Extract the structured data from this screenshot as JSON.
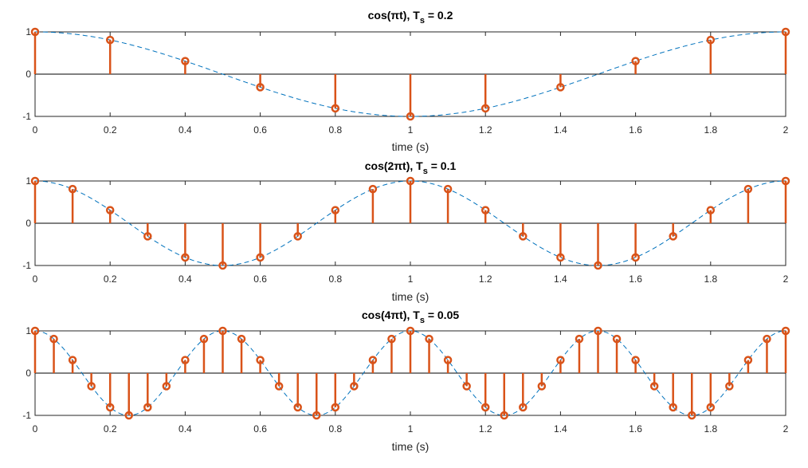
{
  "chart_data": [
    {
      "type": "stem",
      "title": {
        "main": "cos(πt), T",
        "sub": "s",
        "tail": " = 0.2"
      },
      "xlabel": "time (s)",
      "ylabel": "",
      "xlim": [
        0,
        2
      ],
      "ylim": [
        -1,
        1
      ],
      "xticks": [
        "0",
        "0.2",
        "0.4",
        "0.6",
        "0.8",
        "1",
        "1.2",
        "1.4",
        "1.6",
        "1.8",
        "2"
      ],
      "yticks": [
        "-1",
        "0",
        "1"
      ],
      "continuous_frequency": 0.5,
      "continuous_style": "dashed",
      "x": [
        0,
        0.2,
        0.4,
        0.6,
        0.8,
        1.0,
        1.2,
        1.4,
        1.6,
        1.8,
        2.0
      ],
      "values": [
        1,
        0.809,
        0.309,
        -0.309,
        -0.809,
        -1,
        -0.809,
        -0.309,
        0.309,
        0.809,
        1
      ]
    },
    {
      "type": "stem",
      "title": {
        "main": "cos(2πt), T",
        "sub": "s",
        "tail": " = 0.1"
      },
      "xlabel": "time (s)",
      "ylabel": "",
      "xlim": [
        0,
        2
      ],
      "ylim": [
        -1,
        1
      ],
      "xticks": [
        "0",
        "0.2",
        "0.4",
        "0.6",
        "0.8",
        "1",
        "1.2",
        "1.4",
        "1.6",
        "1.8",
        "2"
      ],
      "yticks": [
        "-1",
        "0",
        "1"
      ],
      "continuous_frequency": 1,
      "continuous_style": "dashed",
      "x": [
        0,
        0.1,
        0.2,
        0.3,
        0.4,
        0.5,
        0.6,
        0.7,
        0.8,
        0.9,
        1.0,
        1.1,
        1.2,
        1.3,
        1.4,
        1.5,
        1.6,
        1.7,
        1.8,
        1.9,
        2.0
      ],
      "values": [
        1,
        0.809,
        0.309,
        -0.309,
        -0.809,
        -1,
        -0.809,
        -0.309,
        0.309,
        0.809,
        1,
        0.809,
        0.309,
        -0.309,
        -0.809,
        -1,
        -0.809,
        -0.309,
        0.309,
        0.809,
        1
      ]
    },
    {
      "type": "stem",
      "title": {
        "main": "cos(4πt), T",
        "sub": "s",
        "tail": " = 0.05"
      },
      "xlabel": "time (s)",
      "ylabel": "",
      "xlim": [
        0,
        2
      ],
      "ylim": [
        -1,
        1
      ],
      "xticks": [
        "0",
        "0.2",
        "0.4",
        "0.6",
        "0.8",
        "1",
        "1.2",
        "1.4",
        "1.6",
        "1.8",
        "2"
      ],
      "yticks": [
        "-1",
        "0",
        "1"
      ],
      "continuous_frequency": 2,
      "continuous_style": "dashed",
      "x": [
        0,
        0.05,
        0.1,
        0.15,
        0.2,
        0.25,
        0.3,
        0.35,
        0.4,
        0.45,
        0.5,
        0.55,
        0.6,
        0.65,
        0.7,
        0.75,
        0.8,
        0.85,
        0.9,
        0.95,
        1.0,
        1.05,
        1.1,
        1.15,
        1.2,
        1.25,
        1.3,
        1.35,
        1.4,
        1.45,
        1.5,
        1.55,
        1.6,
        1.65,
        1.7,
        1.75,
        1.8,
        1.85,
        1.9,
        1.95,
        2.0
      ],
      "values": [
        1,
        0.809,
        0.309,
        -0.309,
        -0.809,
        -1,
        -0.809,
        -0.309,
        0.309,
        0.809,
        1,
        0.809,
        0.309,
        -0.309,
        -0.809,
        -1,
        -0.809,
        -0.309,
        0.309,
        0.809,
        1,
        0.809,
        0.309,
        -0.309,
        -0.809,
        -1,
        -0.809,
        -0.309,
        0.309,
        0.809,
        1,
        0.809,
        0.309,
        -0.309,
        -0.809,
        -1,
        -0.809,
        -0.309,
        0.309,
        0.809,
        1
      ]
    }
  ],
  "colors": {
    "stem": "#D95319",
    "continuous": "#0072BD",
    "axis": "#262626",
    "zero_line": "#000000"
  }
}
